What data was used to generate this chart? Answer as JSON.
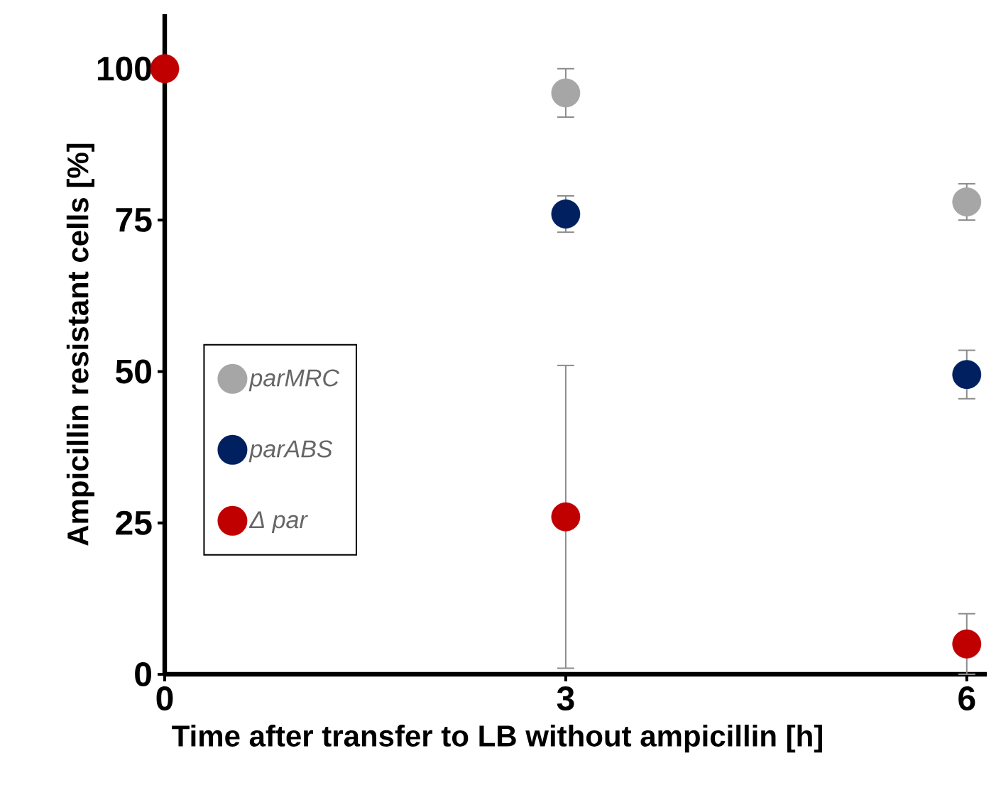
{
  "chart_data": {
    "type": "scatter",
    "xlabel": "Time after transfer to LB without ampicillin [h]",
    "ylabel": "Ampicillin resistant cells [%]",
    "x": [
      0,
      3,
      6
    ],
    "xlim": [
      0,
      6.15
    ],
    "xticks": [
      0,
      3,
      6
    ],
    "ylim": [
      0,
      109
    ],
    "yticks": [
      0,
      25,
      50,
      75,
      100
    ],
    "marker": "circle",
    "legend": "left",
    "series": [
      {
        "name": "parMRC",
        "color": "#a6a6a6",
        "values": [
          null,
          96,
          78
        ],
        "errors": [
          null,
          4,
          3
        ]
      },
      {
        "name": "parABS",
        "color": "#002060",
        "values": [
          null,
          76,
          49.5
        ],
        "errors": [
          null,
          3,
          4
        ]
      },
      {
        "name": "Δ par",
        "color": "#c00000",
        "values": [
          100,
          26,
          5
        ],
        "errors": [
          null,
          [
            1,
            51
          ],
          5
        ]
      }
    ]
  }
}
